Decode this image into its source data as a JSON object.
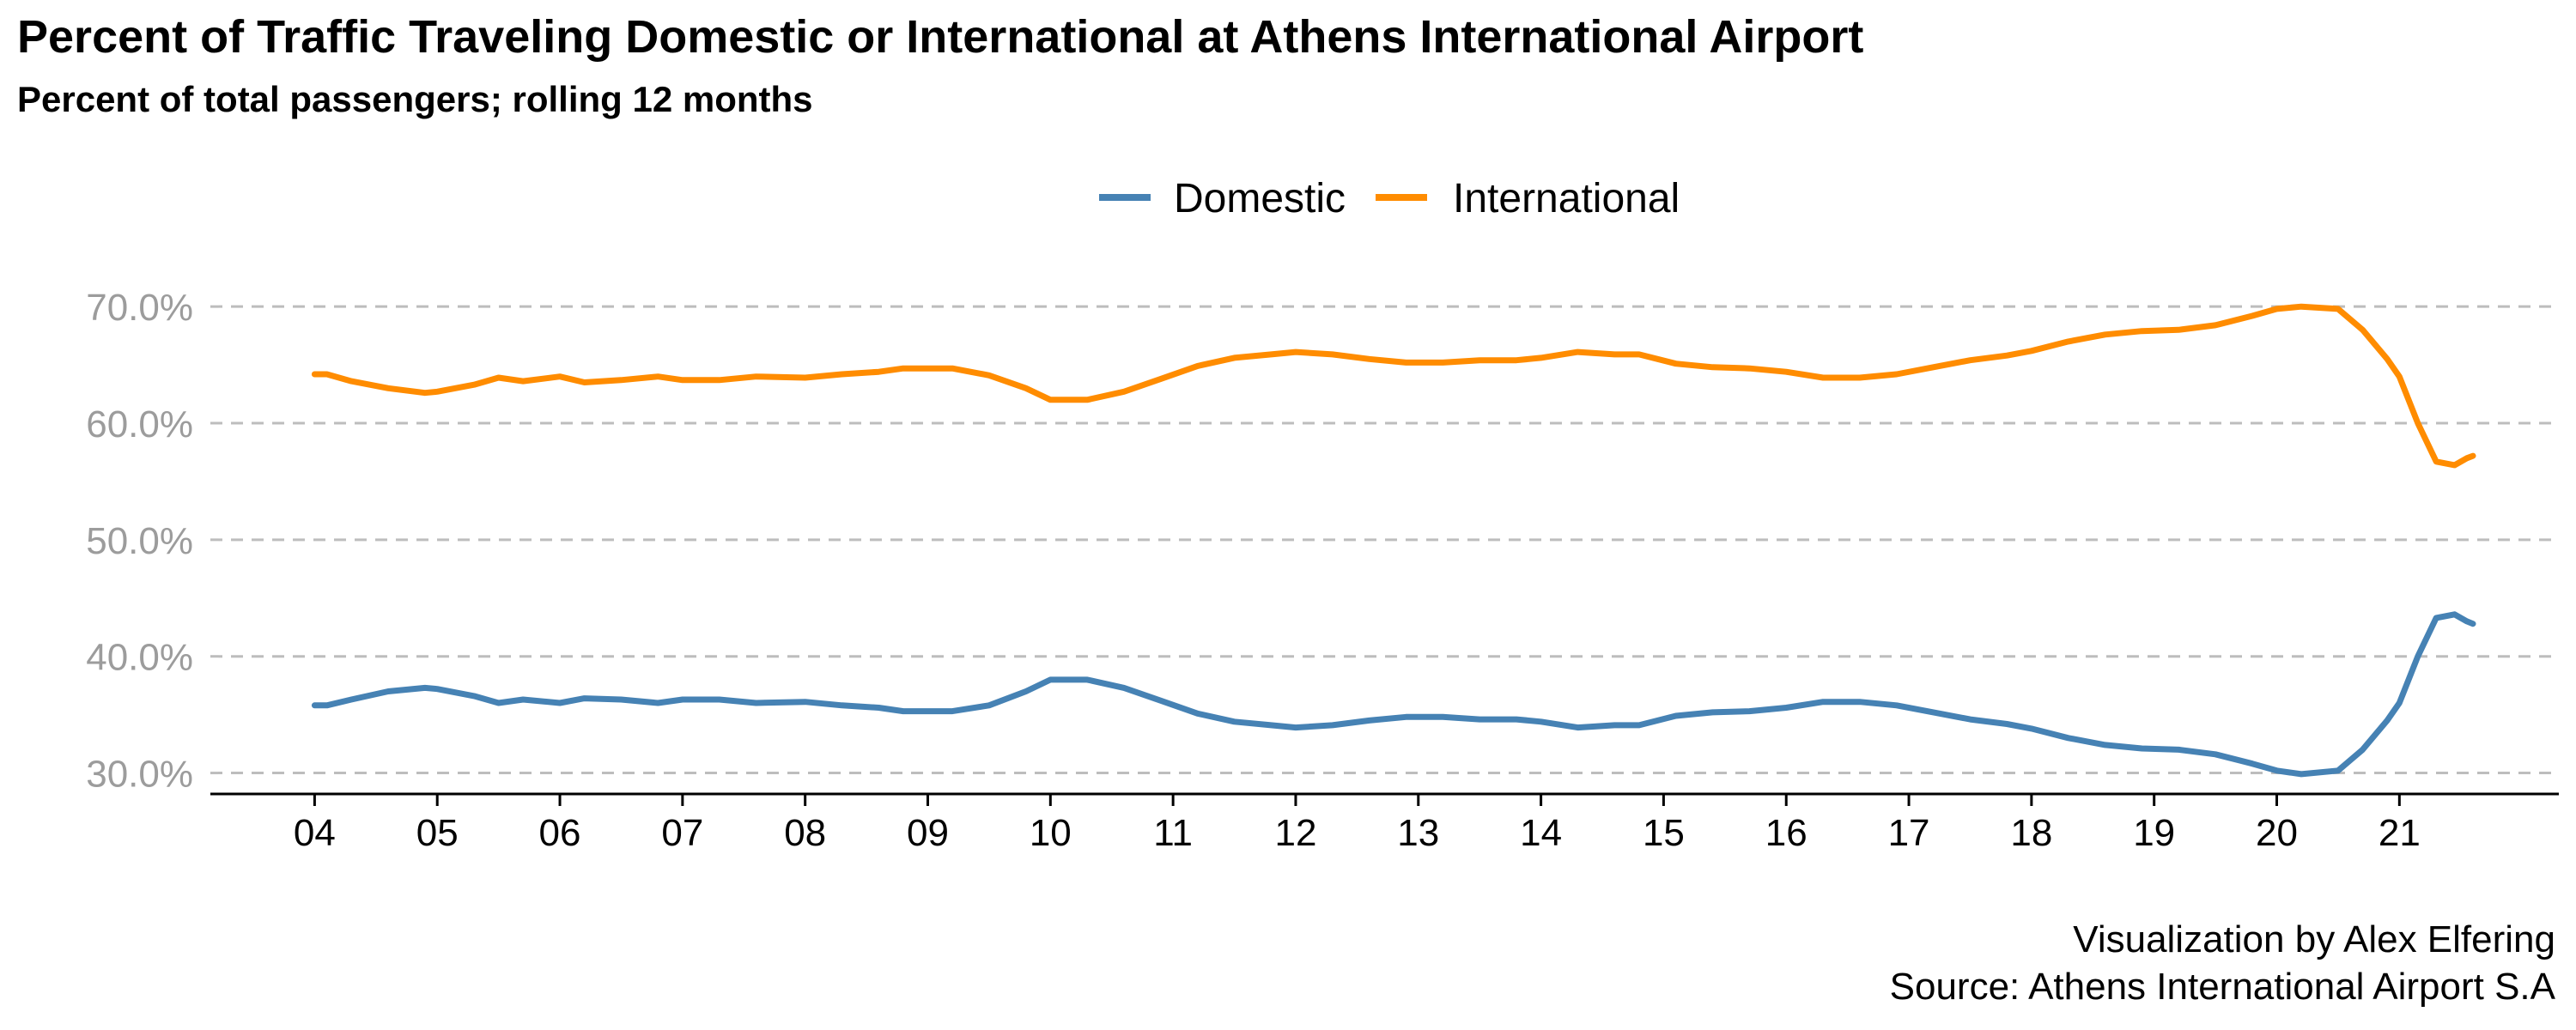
{
  "chart_data": {
    "type": "line",
    "title": "Percent of Traffic Traveling Domestic or International at Athens International Airport",
    "subtitle": "Percent of total passengers; rolling 12 months",
    "caption": [
      "Visualization by Alex Elfering",
      "Source: Athens International Airport S.A"
    ],
    "xlabel": "",
    "ylabel": "",
    "x_ticks": [
      "04",
      "05",
      "06",
      "07",
      "08",
      "09",
      "10",
      "11",
      "12",
      "13",
      "14",
      "15",
      "16",
      "17",
      "18",
      "19",
      "20",
      "21"
    ],
    "y_ticks": [
      "30.0%",
      "40.0%",
      "50.0%",
      "60.0%",
      "70.0%"
    ],
    "ylim": [
      28.2,
      72.0
    ],
    "xlim": [
      2003.15,
      2022.3
    ],
    "grid": "horizontal dashed",
    "legend_position": "top",
    "series": [
      {
        "name": "Domestic",
        "color": "#4682b4",
        "points": [
          [
            2004.0,
            35.8
          ],
          [
            2004.1,
            35.8
          ],
          [
            2004.3,
            36.3
          ],
          [
            2004.6,
            37.0
          ],
          [
            2004.9,
            37.3
          ],
          [
            2005.0,
            37.2
          ],
          [
            2005.3,
            36.6
          ],
          [
            2005.5,
            36.0
          ],
          [
            2005.7,
            36.3
          ],
          [
            2006.0,
            36.0
          ],
          [
            2006.2,
            36.4
          ],
          [
            2006.5,
            36.3
          ],
          [
            2006.8,
            36.0
          ],
          [
            2007.0,
            36.3
          ],
          [
            2007.3,
            36.3
          ],
          [
            2007.6,
            36.0
          ],
          [
            2008.0,
            36.1
          ],
          [
            2008.3,
            35.8
          ],
          [
            2008.6,
            35.6
          ],
          [
            2008.8,
            35.3
          ],
          [
            2009.2,
            35.3
          ],
          [
            2009.5,
            35.8
          ],
          [
            2009.8,
            37.0
          ],
          [
            2010.0,
            38.0
          ],
          [
            2010.3,
            38.0
          ],
          [
            2010.6,
            37.3
          ],
          [
            2010.9,
            36.2
          ],
          [
            2011.2,
            35.1
          ],
          [
            2011.5,
            34.4
          ],
          [
            2011.8,
            34.1
          ],
          [
            2012.0,
            33.9
          ],
          [
            2012.3,
            34.1
          ],
          [
            2012.6,
            34.5
          ],
          [
            2012.9,
            34.8
          ],
          [
            2013.2,
            34.8
          ],
          [
            2013.5,
            34.6
          ],
          [
            2013.8,
            34.6
          ],
          [
            2014.0,
            34.4
          ],
          [
            2014.3,
            33.9
          ],
          [
            2014.6,
            34.1
          ],
          [
            2014.8,
            34.1
          ],
          [
            2015.1,
            34.9
          ],
          [
            2015.4,
            35.2
          ],
          [
            2015.7,
            35.3
          ],
          [
            2016.0,
            35.6
          ],
          [
            2016.3,
            36.1
          ],
          [
            2016.6,
            36.1
          ],
          [
            2016.9,
            35.8
          ],
          [
            2017.2,
            35.2
          ],
          [
            2017.5,
            34.6
          ],
          [
            2017.8,
            34.2
          ],
          [
            2018.0,
            33.8
          ],
          [
            2018.3,
            33.0
          ],
          [
            2018.6,
            32.4
          ],
          [
            2018.9,
            32.1
          ],
          [
            2019.2,
            32.0
          ],
          [
            2019.5,
            31.6
          ],
          [
            2019.8,
            30.8
          ],
          [
            2020.0,
            30.2
          ],
          [
            2020.2,
            29.9
          ],
          [
            2020.5,
            30.2
          ],
          [
            2020.7,
            32.0
          ],
          [
            2020.9,
            34.5
          ],
          [
            2021.0,
            36.0
          ],
          [
            2021.15,
            40.0
          ],
          [
            2021.3,
            43.3
          ],
          [
            2021.45,
            43.6
          ],
          [
            2021.55,
            43.0
          ],
          [
            2021.6,
            42.8
          ]
        ]
      },
      {
        "name": "International",
        "color": "#ff8c00",
        "points": [
          [
            2004.0,
            64.2
          ],
          [
            2004.1,
            64.2
          ],
          [
            2004.3,
            63.6
          ],
          [
            2004.6,
            63.0
          ],
          [
            2004.9,
            62.6
          ],
          [
            2005.0,
            62.7
          ],
          [
            2005.3,
            63.3
          ],
          [
            2005.5,
            63.9
          ],
          [
            2005.7,
            63.6
          ],
          [
            2006.0,
            64.0
          ],
          [
            2006.2,
            63.5
          ],
          [
            2006.5,
            63.7
          ],
          [
            2006.8,
            64.0
          ],
          [
            2007.0,
            63.7
          ],
          [
            2007.3,
            63.7
          ],
          [
            2007.6,
            64.0
          ],
          [
            2008.0,
            63.9
          ],
          [
            2008.3,
            64.2
          ],
          [
            2008.6,
            64.4
          ],
          [
            2008.8,
            64.7
          ],
          [
            2009.2,
            64.7
          ],
          [
            2009.5,
            64.1
          ],
          [
            2009.8,
            63.0
          ],
          [
            2010.0,
            62.0
          ],
          [
            2010.3,
            62.0
          ],
          [
            2010.6,
            62.7
          ],
          [
            2010.9,
            63.8
          ],
          [
            2011.2,
            64.9
          ],
          [
            2011.5,
            65.6
          ],
          [
            2011.8,
            65.9
          ],
          [
            2012.0,
            66.1
          ],
          [
            2012.3,
            65.9
          ],
          [
            2012.6,
            65.5
          ],
          [
            2012.9,
            65.2
          ],
          [
            2013.2,
            65.2
          ],
          [
            2013.5,
            65.4
          ],
          [
            2013.8,
            65.4
          ],
          [
            2014.0,
            65.6
          ],
          [
            2014.3,
            66.1
          ],
          [
            2014.6,
            65.9
          ],
          [
            2014.8,
            65.9
          ],
          [
            2015.1,
            65.1
          ],
          [
            2015.4,
            64.8
          ],
          [
            2015.7,
            64.7
          ],
          [
            2016.0,
            64.4
          ],
          [
            2016.3,
            63.9
          ],
          [
            2016.6,
            63.9
          ],
          [
            2016.9,
            64.2
          ],
          [
            2017.2,
            64.8
          ],
          [
            2017.5,
            65.4
          ],
          [
            2017.8,
            65.8
          ],
          [
            2018.0,
            66.2
          ],
          [
            2018.3,
            67.0
          ],
          [
            2018.6,
            67.6
          ],
          [
            2018.9,
            67.9
          ],
          [
            2019.2,
            68.0
          ],
          [
            2019.5,
            68.4
          ],
          [
            2019.8,
            69.2
          ],
          [
            2020.0,
            69.8
          ],
          [
            2020.2,
            70.0
          ],
          [
            2020.5,
            69.8
          ],
          [
            2020.7,
            68.0
          ],
          [
            2020.9,
            65.5
          ],
          [
            2021.0,
            64.0
          ],
          [
            2021.15,
            60.0
          ],
          [
            2021.3,
            56.7
          ],
          [
            2021.45,
            56.4
          ],
          [
            2021.55,
            57.0
          ],
          [
            2021.6,
            57.2
          ]
        ]
      }
    ]
  }
}
